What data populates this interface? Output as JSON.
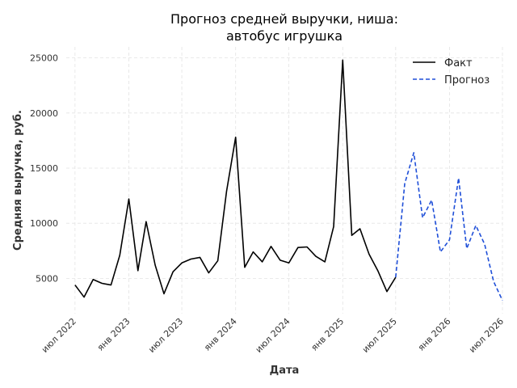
{
  "chart_data": {
    "type": "line",
    "title_line1": "Прогноз средней выручки, ниша:",
    "title_line2": "автобус игрушка",
    "xlabel": "Дата",
    "ylabel": "Средняя выручка, руб.",
    "ylim": [
      1800,
      26000
    ],
    "xlim": [
      "2022-06-01",
      "2026-07-01"
    ],
    "yticks": [
      5000,
      10000,
      15000,
      20000,
      25000
    ],
    "yticklabels": [
      "5000",
      "10000",
      "15000",
      "20000",
      "25000"
    ],
    "xticks": [
      "2022-07-01",
      "2023-01-01",
      "2023-07-01",
      "2024-01-01",
      "2024-07-01",
      "2025-01-01",
      "2025-07-01",
      "2026-01-01",
      "2026-07-01"
    ],
    "xticklabels": [
      "июл 2022",
      "янв 2023",
      "июл 2023",
      "янв 2024",
      "июл 2024",
      "янв 2025",
      "июл 2025",
      "янв 2026",
      "июл 2026"
    ],
    "grid": true,
    "legend_position": "top-right",
    "series": [
      {
        "name": "Факт",
        "color": "#000000",
        "style": "solid",
        "x": [
          "2022-07-01",
          "2022-08-01",
          "2022-09-01",
          "2022-10-01",
          "2022-11-01",
          "2022-12-01",
          "2023-01-01",
          "2023-02-01",
          "2023-03-01",
          "2023-04-01",
          "2023-05-01",
          "2023-06-01",
          "2023-07-01",
          "2023-08-01",
          "2023-09-01",
          "2023-10-01",
          "2023-11-01",
          "2023-12-01",
          "2024-01-01",
          "2024-02-01",
          "2024-03-01",
          "2024-04-01",
          "2024-05-01",
          "2024-06-01",
          "2024-07-01",
          "2024-08-01",
          "2024-09-01",
          "2024-10-01",
          "2024-11-01",
          "2024-12-01",
          "2025-01-01",
          "2025-02-01",
          "2025-03-01",
          "2025-04-01",
          "2025-05-01",
          "2025-06-01",
          "2025-07-01"
        ],
        "y": [
          4400,
          3300,
          4900,
          4550,
          4400,
          7100,
          12200,
          5700,
          10150,
          6200,
          3600,
          5600,
          6400,
          6750,
          6900,
          5500,
          6600,
          12900,
          17800,
          6000,
          7400,
          6500,
          7900,
          6650,
          6400,
          7800,
          7850,
          7000,
          6500,
          9700,
          24800,
          8900,
          9500,
          7200,
          5700,
          3800,
          5100
        ]
      },
      {
        "name": "Прогноз",
        "color": "#1f4fd8",
        "style": "dashed",
        "x": [
          "2025-07-01",
          "2025-08-01",
          "2025-09-01",
          "2025-10-01",
          "2025-11-01",
          "2025-12-01",
          "2026-01-01",
          "2026-02-01",
          "2026-03-01",
          "2026-04-01",
          "2026-05-01",
          "2026-06-01",
          "2026-07-01"
        ],
        "y": [
          5100,
          13600,
          16400,
          10500,
          12100,
          7400,
          8500,
          14100,
          7700,
          9800,
          8100,
          4700,
          3000
        ]
      }
    ]
  }
}
